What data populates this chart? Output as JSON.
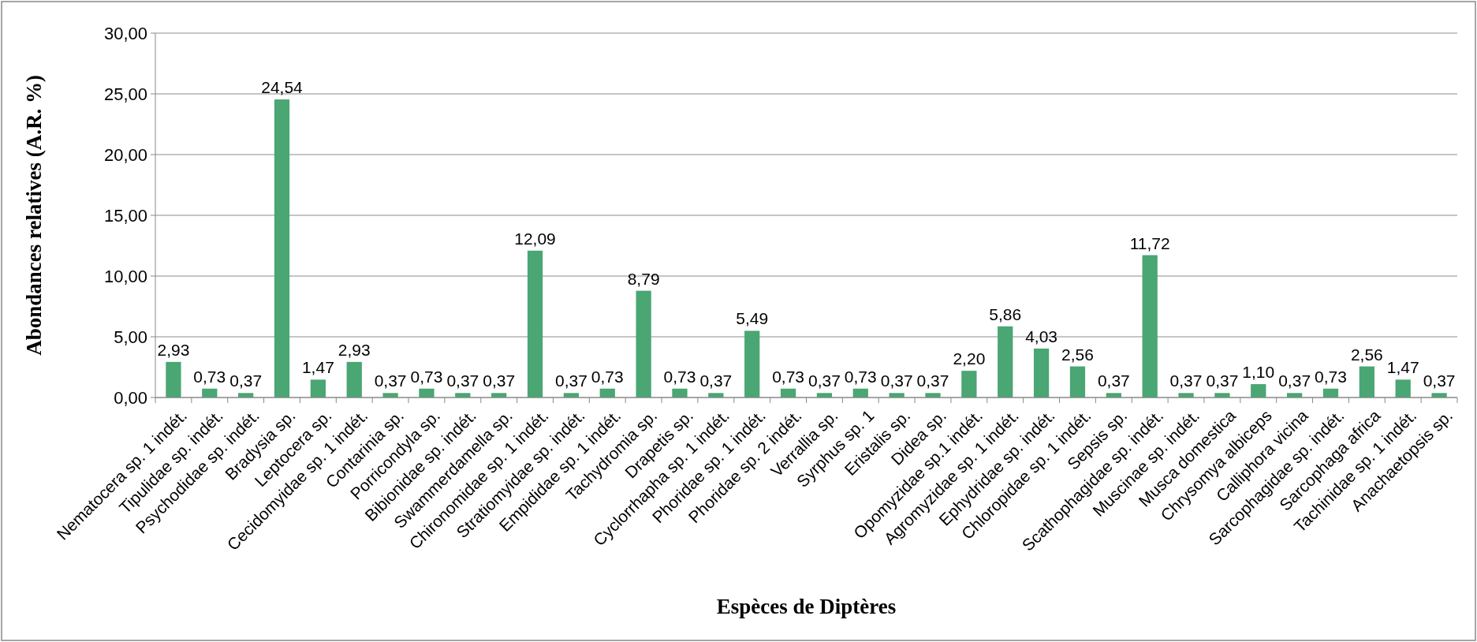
{
  "chart_data": {
    "type": "bar",
    "xlabel": "Espèces de Diptères",
    "ylabel": "Abondances relatives (A.R. %)",
    "categories": [
      "Nematocera sp. 1 indét.",
      "Tipulidae sp. indét.",
      "Psychodidae sp. indét.",
      "Bradysia sp.",
      "Leptocera sp.",
      "Cecidomyidae sp. 1 indét.",
      "Contarinia sp.",
      "Porricondyla sp.",
      "Bibionidae sp. indét.",
      "Swammerdamella sp.",
      "Chironomidae sp. 1 indét.",
      "Stratiomyidae sp. indét.",
      "Empididae sp. 1 indét.",
      "Tachydromia sp.",
      "Drapetis sp.",
      "Cyclorrhapha sp. 1 indét.",
      "Phoridae sp. 1 indét.",
      "Phoridae sp. 2 indét.",
      "Verrallia sp.",
      "Syrphus sp. 1",
      "Eristalis sp.",
      "Didea sp.",
      "Opomyzidae sp.1  indét.",
      "Agromyzidae sp. 1 indét.",
      "Ephydridae sp. indét.",
      "Chloropidae sp. 1  indét.",
      "Sepsis sp.",
      "Scathophagidae sp. indét.",
      "Muscinae sp. indét.",
      "Musca domestica",
      "Chrysomya albiceps",
      "Calliphora vicina",
      "Sarcophagidae sp. indét.",
      "Sarcophaga africa",
      "Tachinidae sp. 1 indét.",
      "Anachaetopsis sp."
    ],
    "values": [
      2.93,
      0.73,
      0.37,
      24.54,
      1.47,
      2.93,
      0.37,
      0.73,
      0.37,
      0.37,
      12.09,
      0.37,
      0.73,
      8.79,
      0.73,
      0.37,
      5.49,
      0.73,
      0.37,
      0.73,
      0.37,
      0.37,
      2.2,
      5.86,
      4.03,
      2.56,
      0.37,
      11.72,
      0.37,
      0.37,
      1.1,
      0.37,
      0.73,
      2.56,
      1.47,
      0.37
    ],
    "value_labels": [
      "2,93",
      "0,73",
      "0,37",
      "24,54",
      "1,47",
      "2,93",
      "0,37",
      "0,73",
      "0,37",
      "0,37",
      "12,09",
      "0,37",
      "0,73",
      "8,79",
      "0,73",
      "0,37",
      "5,49",
      "0,73",
      "0,37",
      "0,73",
      "0,37",
      "0,37",
      "2,20",
      "5,86",
      "4,03",
      "2,56",
      "0,37",
      "11,72",
      "0,37",
      "0,37",
      "1,10",
      "0,37",
      "0,73",
      "2,56",
      "1,47",
      "0,37"
    ],
    "color": "#4aa673",
    "ylim": [
      0,
      30
    ],
    "yticks": [
      {
        "value": 0,
        "label": "0,00"
      },
      {
        "value": 5,
        "label": "5,00"
      },
      {
        "value": 10,
        "label": "10,00"
      },
      {
        "value": 15,
        "label": "15,00"
      },
      {
        "value": 20,
        "label": "20,00"
      },
      {
        "value": 25,
        "label": "25,00"
      },
      {
        "value": 30,
        "label": "30,00"
      }
    ],
    "grid": "y"
  }
}
